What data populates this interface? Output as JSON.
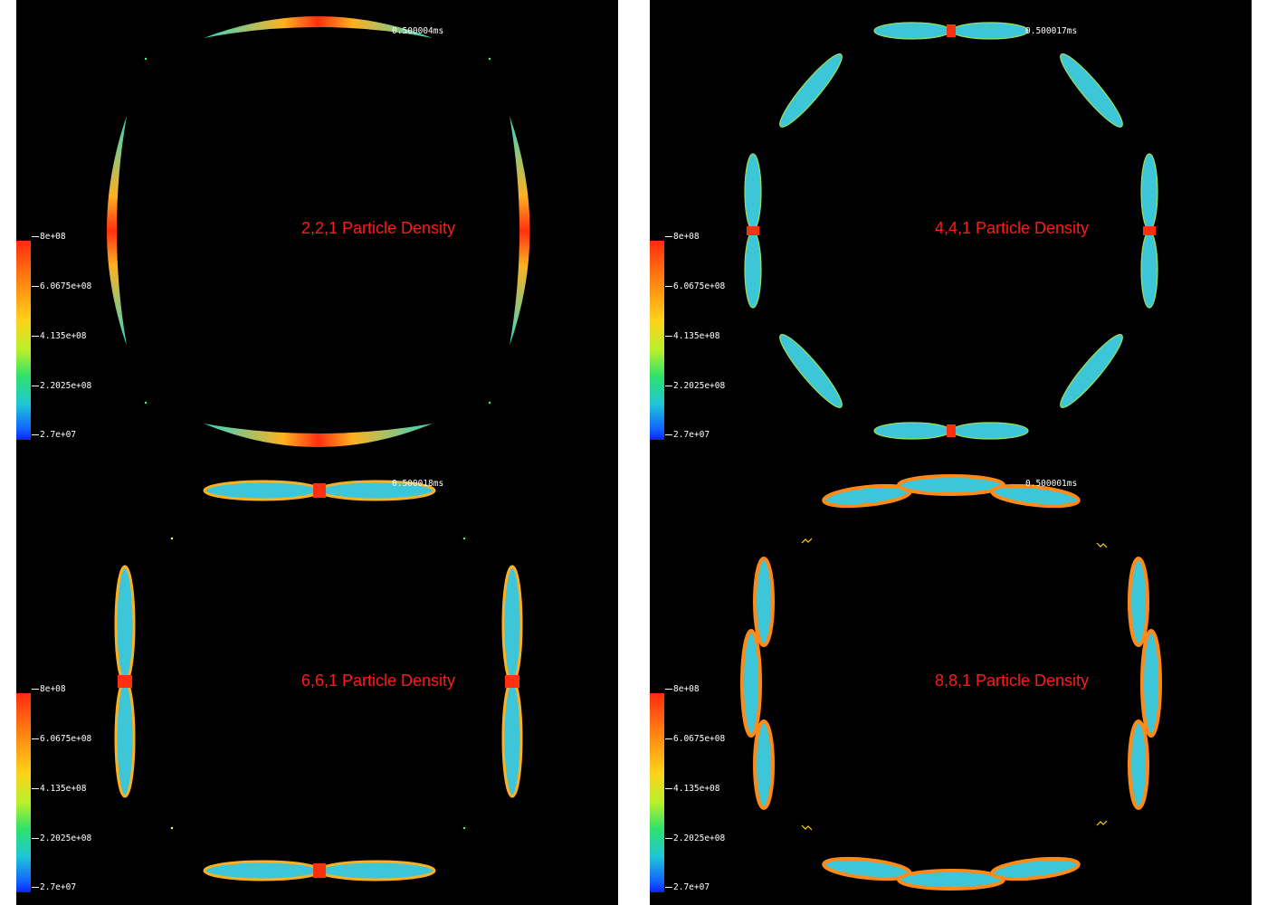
{
  "panels": [
    {
      "title": "2,2,1 Particle Density",
      "time": "0.500004ms",
      "variant": "221"
    },
    {
      "title": "4,4,1 Particle Density",
      "time": "0.500017ms",
      "variant": "441"
    },
    {
      "title": "6,6,1 Particle Density",
      "time": "0.500018ms",
      "variant": "661"
    },
    {
      "title": "8,8,1 Particle Density",
      "time": "0.500001ms",
      "variant": "881"
    }
  ],
  "colorbar": {
    "labels": [
      "8e+08",
      "6.0675e+08",
      "4.135e+08",
      "2.2025e+08",
      "2.7e+07"
    ],
    "colors": [
      "#ff2a10",
      "#ffd21a",
      "#2fe26a",
      "#1fc7d6",
      "#1020ff"
    ]
  }
}
